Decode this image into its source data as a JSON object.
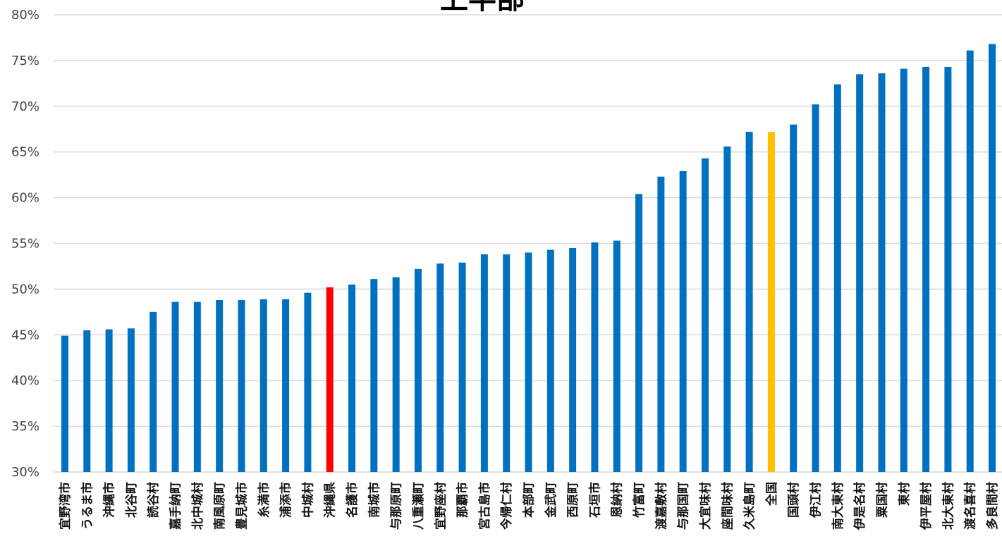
{
  "chart_data": {
    "type": "bar",
    "title": "上半部",
    "xlabel": "",
    "ylabel": "",
    "ylim": [
      30,
      80
    ],
    "y_ticks": [
      "30%",
      "35%",
      "40%",
      "45%",
      "50%",
      "55%",
      "60%",
      "65%",
      "70%",
      "75%",
      "80%"
    ],
    "grid": true,
    "legend": "none",
    "colors": {
      "default": "#0070c0",
      "prefecture": "#ff0000",
      "national": "#ffc000"
    },
    "categories": [
      "宜野湾市",
      "うるま市",
      "沖縄市",
      "北谷町",
      "読谷村",
      "嘉手納町",
      "北中城村",
      "南風原町",
      "豊見城市",
      "糸満市",
      "浦添市",
      "中城村",
      "沖縄県",
      "名護市",
      "南城市",
      "与那原町",
      "八重瀬町",
      "宜野座村",
      "那覇市",
      "宮古島市",
      "今帰仁村",
      "本部町",
      "金武町",
      "西原町",
      "石垣市",
      "恩納村",
      "竹富町",
      "渡嘉敷村",
      "与那国町",
      "大宜味村",
      "座間味村",
      "久米島町",
      "全国",
      "国頭村",
      "伊江村",
      "南大東村",
      "伊是名村",
      "粟国村",
      "東村",
      "伊平屋村",
      "北大東村",
      "渡名喜村",
      "多良間村"
    ],
    "values": [
      44.9,
      45.5,
      45.6,
      45.7,
      47.5,
      48.6,
      48.6,
      48.8,
      48.8,
      48.9,
      48.9,
      49.6,
      50.2,
      50.5,
      51.1,
      51.3,
      52.2,
      52.8,
      52.9,
      53.8,
      53.8,
      54.0,
      54.3,
      54.5,
      55.1,
      55.3,
      60.4,
      62.3,
      62.9,
      64.3,
      65.6,
      67.2,
      67.2,
      68.0,
      70.2,
      72.4,
      73.5,
      73.6,
      74.1,
      74.3,
      74.3,
      76.1,
      76.8
    ],
    "bar_colors": [
      "#0070c0",
      "#0070c0",
      "#0070c0",
      "#0070c0",
      "#0070c0",
      "#0070c0",
      "#0070c0",
      "#0070c0",
      "#0070c0",
      "#0070c0",
      "#0070c0",
      "#0070c0",
      "#ff0000",
      "#0070c0",
      "#0070c0",
      "#0070c0",
      "#0070c0",
      "#0070c0",
      "#0070c0",
      "#0070c0",
      "#0070c0",
      "#0070c0",
      "#0070c0",
      "#0070c0",
      "#0070c0",
      "#0070c0",
      "#0070c0",
      "#0070c0",
      "#0070c0",
      "#0070c0",
      "#0070c0",
      "#0070c0",
      "#ffc000",
      "#0070c0",
      "#0070c0",
      "#0070c0",
      "#0070c0",
      "#0070c0",
      "#0070c0",
      "#0070c0",
      "#0070c0",
      "#0070c0",
      "#0070c0"
    ]
  }
}
